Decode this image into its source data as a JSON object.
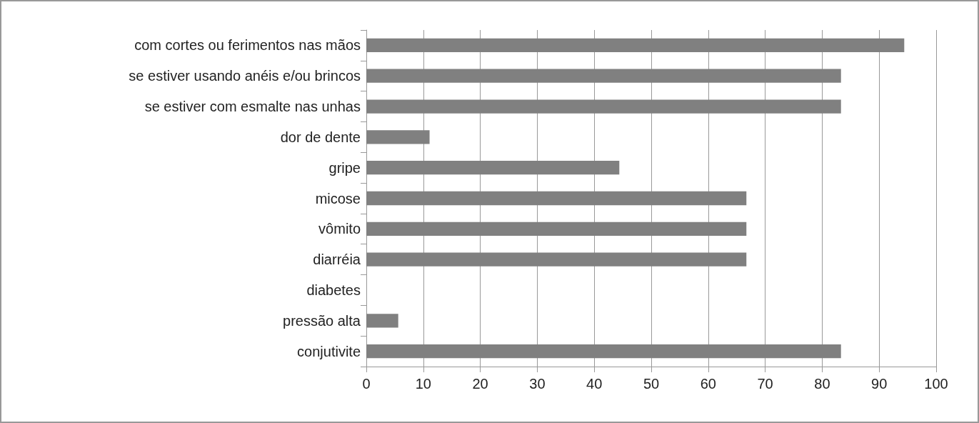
{
  "chart_data": {
    "type": "bar",
    "orientation": "horizontal",
    "categories": [
      "com cortes ou ferimentos nas mãos",
      "se estiver usando anéis e/ou brincos",
      "se estiver com esmalte nas unhas",
      "dor de dente",
      "gripe",
      "micose",
      "vômito",
      "diarréia",
      "diabetes",
      "pressão alta",
      "conjutivite"
    ],
    "values": [
      94.4,
      83.3,
      83.3,
      11.1,
      44.4,
      66.7,
      66.7,
      66.7,
      0,
      5.6,
      83.3
    ],
    "color": "#808080",
    "xlim": [
      0,
      100
    ],
    "xticks": [
      0,
      10,
      20,
      30,
      40,
      50,
      60,
      70,
      80,
      90,
      100
    ],
    "grid": "x"
  }
}
